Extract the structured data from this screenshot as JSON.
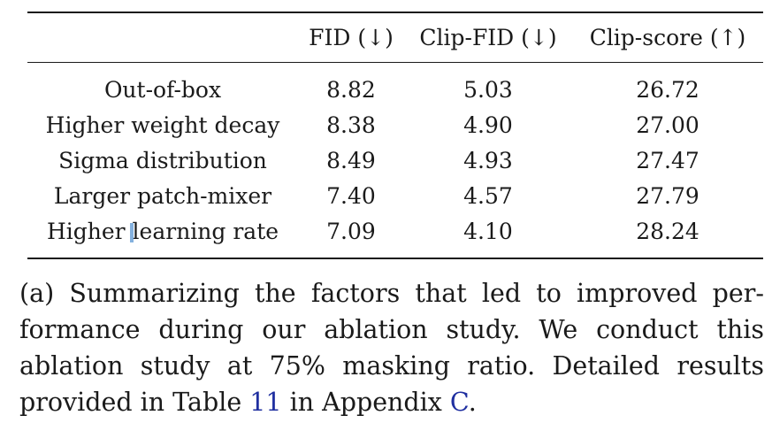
{
  "table": {
    "headers": [
      "",
      "FID (↓)",
      "Clip-FID (↓)",
      "Clip-score (↑)"
    ],
    "rows": [
      {
        "label": "Out-of-box",
        "fid": "8.82",
        "clip_fid": "5.03",
        "clip_score": "26.72"
      },
      {
        "label": "Higher weight decay",
        "fid": "8.38",
        "clip_fid": "4.90",
        "clip_score": "27.00"
      },
      {
        "label": "Sigma distribution",
        "fid": "8.49",
        "clip_fid": "4.93",
        "clip_score": "27.47"
      },
      {
        "label": "Larger patch-mixer",
        "fid": "7.40",
        "clip_fid": "4.57",
        "clip_score": "27.79"
      },
      {
        "label_part1": "Higher ",
        "label_part2": "learning rate",
        "fid": "7.09",
        "clip_fid": "4.10",
        "clip_score": "28.24"
      }
    ]
  },
  "caption": {
    "line1": "(a) Summarizing the factors that led to improved per-",
    "line2": "formance during our ablation study.  We conduct this",
    "line3": "ablation study at 75% masking ratio.  Detailed results",
    "line4_a": "provided in Table ",
    "line4_ref_table": "11",
    "line4_b": " in Appendix ",
    "line4_ref_appendix": "C",
    "line4_c": "."
  },
  "colors": {
    "text": "#1a1a1a",
    "link": "#1f2fa0",
    "cursor": "#6fa3d8"
  }
}
